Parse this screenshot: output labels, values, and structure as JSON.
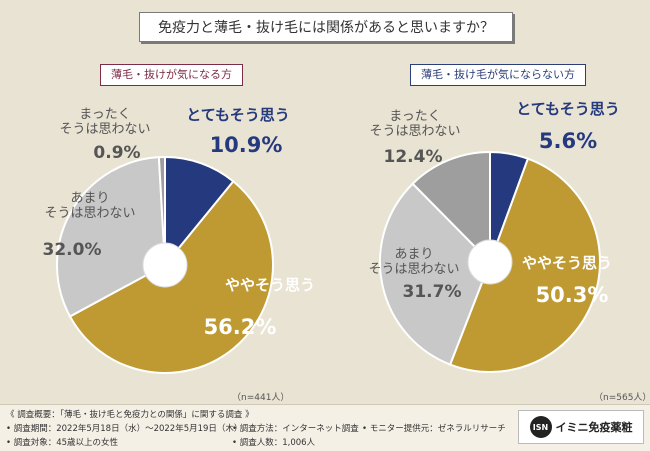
{
  "title": "免疫力と薄毛・抜け毛には関係があると思いますか？",
  "groups": {
    "left_label": "薄毛・抜けが気になる方",
    "right_label": "薄毛・抜け毛が気にならない方",
    "left_n": "（n=441人）",
    "right_n": "（n=565人）"
  },
  "chart_data": [
    {
      "type": "pie",
      "categories": [
        "とてもそう思う",
        "ややそう思う",
        "あまりそうは思わない",
        "まったくそうは思わない"
      ],
      "values": [
        10.9,
        56.2,
        32.0,
        0.9
      ],
      "value_labels": [
        "10.9%",
        "56.2%",
        "32.0%",
        "0.9%"
      ],
      "colors": [
        "#253a7e",
        "#bf9a33",
        "#c8c8c8",
        "#9e9e9e"
      ],
      "label_colors": [
        "#253a7e",
        "#ffffff",
        "#555555",
        "#555555"
      ]
    },
    {
      "type": "pie",
      "categories": [
        "とてもそう思う",
        "ややそう思う",
        "あまりそうは思わない",
        "まったくそうは思わない"
      ],
      "values": [
        5.6,
        50.3,
        31.7,
        12.4
      ],
      "value_labels": [
        "5.6%",
        "50.3%",
        "31.7%",
        "12.4%"
      ],
      "colors": [
        "#253a7e",
        "#bf9a33",
        "#c8c8c8",
        "#9e9e9e"
      ],
      "label_colors": [
        "#253a7e",
        "#ffffff",
        "#555555",
        "#555555"
      ]
    }
  ],
  "footer": {
    "overview": "《 調査概要：「薄毛・抜け毛と免疫力との関係」に関する調査 》",
    "period": "• 調査期間：2022年5月18日（水）～2022年5月19日（木）",
    "method": "• 調査方法：インターネット調査",
    "provider": "• モニター提供元：ゼネラルリサーチ",
    "target": "• 調査対象：45歳以上の女性",
    "count": "• 調査人数：1,006人"
  },
  "logo": {
    "mark": "ISN",
    "text": "イミニ免疫薬粧"
  }
}
